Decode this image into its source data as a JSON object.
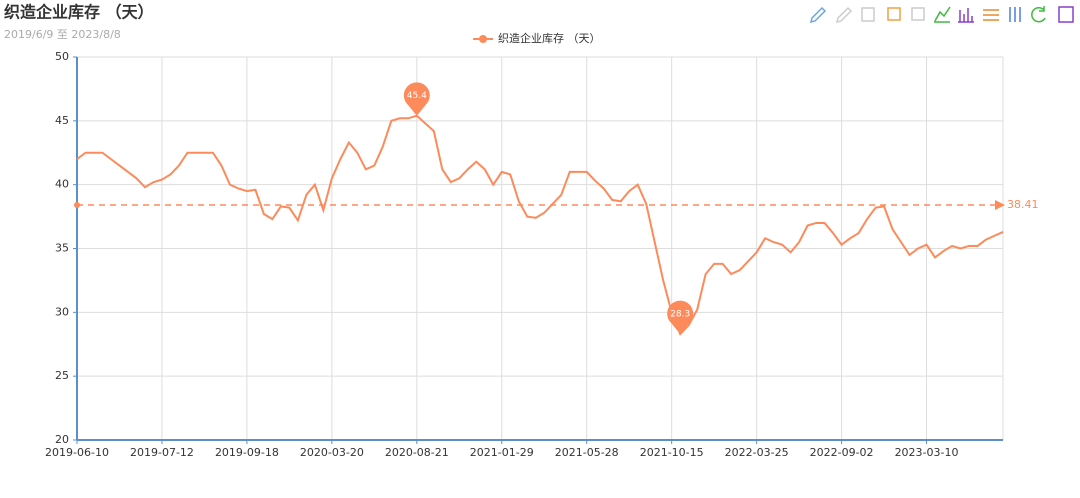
{
  "chart_data": {
    "type": "line",
    "title": "织造企业库存 （天）",
    "subtitle": "2019/6/9 至 2023/8/8",
    "categories": [
      "2019-06-10",
      null,
      null,
      null,
      null,
      null,
      null,
      null,
      null,
      null,
      "2019-07-12",
      null,
      null,
      null,
      null,
      null,
      null,
      null,
      null,
      null,
      "2019-09-18",
      null,
      null,
      null,
      null,
      null,
      null,
      null,
      null,
      null,
      "2020-03-20",
      null,
      null,
      null,
      null,
      null,
      null,
      null,
      null,
      null,
      "2020-08-21",
      null,
      null,
      null,
      null,
      null,
      null,
      null,
      null,
      null,
      "2021-01-29",
      null,
      null,
      null,
      null,
      null,
      null,
      null,
      null,
      null,
      "2021-05-28",
      null,
      null,
      null,
      null,
      null,
      null,
      null,
      null,
      null,
      "2021-10-15",
      null,
      null,
      null,
      null,
      null,
      null,
      null,
      null,
      null,
      "2022-03-25",
      null,
      null,
      null,
      null,
      null,
      null,
      null,
      null,
      null,
      "2022-09-02",
      null,
      null,
      null,
      null,
      null,
      null,
      null,
      null,
      null,
      "2023-03-10",
      null,
      null,
      null,
      null,
      null,
      null,
      null,
      null,
      null
    ],
    "series": [
      {
        "name": "织造企业库存 （天）",
        "color": "#fd8a5b",
        "values": [
          42.0,
          42.5,
          42.5,
          42.5,
          42,
          41.5,
          41,
          40.5,
          39.8,
          40.2,
          40.4,
          40.8,
          41.5,
          42.5,
          42.5,
          42.5,
          42.5,
          41.5,
          40,
          39.7,
          39.5,
          39.6,
          37.7,
          37.3,
          38.3,
          38.2,
          37.2,
          39.2,
          40,
          38,
          40.5,
          42,
          43.3,
          42.5,
          41.2,
          41.5,
          43,
          45,
          45.2,
          45.2,
          45.4,
          44.8,
          44.2,
          41.2,
          40.2,
          40.5,
          41.2,
          41.8,
          41.2,
          40,
          41,
          40.8,
          38.7,
          37.5,
          37.4,
          37.8,
          38.5,
          39.2,
          41,
          41,
          41,
          40.3,
          39.7,
          38.8,
          38.7,
          39.5,
          40,
          38.5,
          35.5,
          32.5,
          30,
          28.3,
          29,
          30.2,
          33,
          33.8,
          33.8,
          33,
          33.3,
          34,
          34.7,
          35.8,
          35.5,
          35.3,
          34.7,
          35.5,
          36.8,
          37,
          37,
          36.2,
          35.3,
          35.8,
          36.2,
          37.3,
          38.2,
          38.3,
          36.5,
          35.5,
          34.5,
          35,
          35.3,
          34.3,
          34.8,
          35.2,
          35,
          35.2,
          35.2,
          35.7,
          36,
          36.3
        ]
      }
    ],
    "mark_points": [
      45.4,
      28.3
    ],
    "average": 38.41,
    "ylim": [
      20,
      50
    ],
    "yticks": [
      20,
      25,
      30,
      35,
      40,
      45,
      50
    ],
    "grid": true
  }
}
